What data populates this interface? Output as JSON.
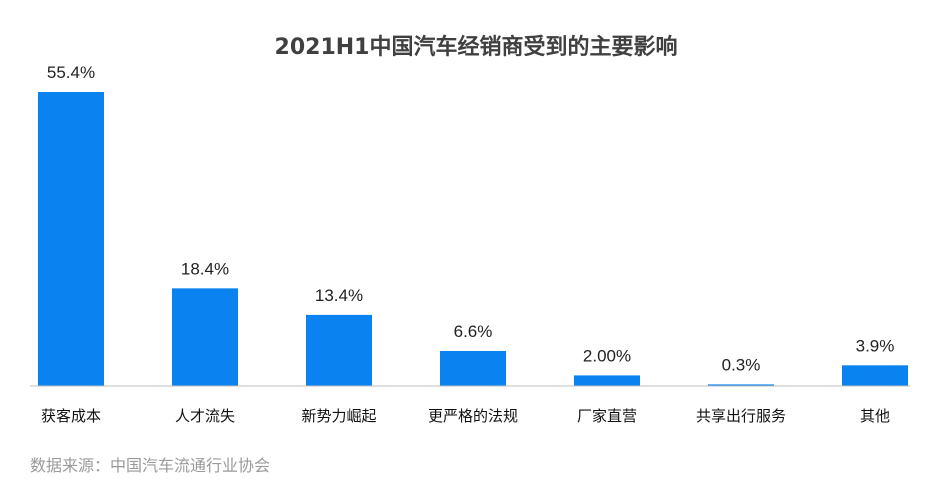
{
  "chart_data": {
    "type": "bar",
    "title": "2021H1中国汽车经销商受到的主要影响",
    "categories": [
      "获客成本",
      "人才流失",
      "新势力崛起",
      "更严格的法规",
      "厂家直营",
      "共享出行服务",
      "其他"
    ],
    "values": [
      55.4,
      18.4,
      13.4,
      6.6,
      2.0,
      0.3,
      3.9
    ],
    "value_labels": [
      "55.4%",
      "18.4%",
      "13.4%",
      "6.6%",
      "2.00%",
      "0.3%",
      "3.9%"
    ],
    "ylim": [
      0,
      55.4
    ],
    "grid": false,
    "legend": "none",
    "bar_color": "#0a82f0",
    "axis_color": "#bfbfbf"
  },
  "source": "数据来源：中国汽车流通行业协会"
}
